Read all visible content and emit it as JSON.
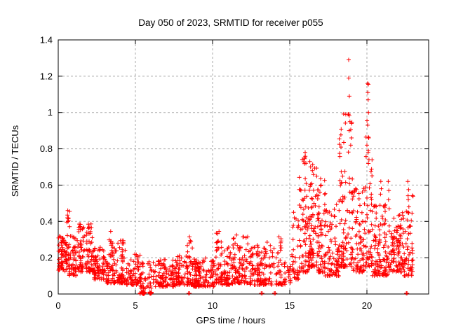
{
  "chart_data": {
    "type": "scatter",
    "title": "Day 050 of 2023, SRMTID for receiver p055",
    "xlabel": "GPS time / hours",
    "ylabel": "SRMTID / TECUs",
    "xlim": [
      0,
      24
    ],
    "ylim": [
      0,
      1.4
    ],
    "xticks": [
      0,
      5,
      10,
      15,
      20
    ],
    "xtick_labels": [
      "0",
      "5",
      "10",
      "15",
      "20"
    ],
    "yticks": [
      0,
      0.2,
      0.4,
      0.6,
      0.8,
      1.0,
      1.2,
      1.4
    ],
    "ytick_labels": [
      "0",
      "0.2",
      "0.4",
      "0.6",
      "0.8",
      "1",
      "1.2",
      "1.4"
    ],
    "grid": true,
    "legend": "none",
    "marker": {
      "shape": "plus",
      "size": 7,
      "color": "#ff0000"
    },
    "colors": {
      "marker": "#ff0000",
      "grid": "#aaaaaa",
      "axis": "#000000",
      "background": "#ffffff"
    },
    "seed": 20230050,
    "clusters": [
      {
        "x": [
          0.0,
          0.35
        ],
        "n": 45,
        "y": [
          0.13,
          0.33
        ],
        "k": 1.3
      },
      {
        "x": [
          0.3,
          0.55
        ],
        "n": 25,
        "y": [
          0.12,
          0.3
        ],
        "k": 1.5
      },
      {
        "x": [
          0.5,
          0.75
        ],
        "n": 22,
        "y": [
          0.15,
          0.47
        ],
        "k": 2.0
      },
      {
        "x": [
          0.7,
          1.3
        ],
        "n": 60,
        "y": [
          0.1,
          0.32
        ],
        "k": 1.5
      },
      {
        "x": [
          1.3,
          2.3
        ],
        "n": 110,
        "y": [
          0.12,
          0.39
        ],
        "k": 1.5
      },
      {
        "x": [
          2.3,
          3.1
        ],
        "n": 80,
        "y": [
          0.08,
          0.26
        ],
        "k": 1.6
      },
      {
        "x": [
          3.1,
          3.8
        ],
        "n": 70,
        "y": [
          0.06,
          0.33
        ],
        "k": 2.0
      },
      {
        "x": [
          3.8,
          4.4
        ],
        "n": 60,
        "y": [
          0.06,
          0.3
        ],
        "k": 2.0
      },
      {
        "x": [
          4.4,
          5.3
        ],
        "n": 70,
        "y": [
          0.05,
          0.22
        ],
        "k": 1.8
      },
      {
        "x": [
          5.3,
          6.3
        ],
        "n": 50,
        "y": [
          0.03,
          0.18
        ],
        "k": 1.8
      },
      {
        "x": [
          5.28,
          5.62
        ],
        "n": 28,
        "y": [
          0.0,
          0.012
        ],
        "k": 1.0
      },
      {
        "x": [
          5.92,
          6.08
        ],
        "n": 10,
        "y": [
          0.0,
          0.012
        ],
        "k": 1.0
      },
      {
        "x": [
          6.3,
          7.6
        ],
        "n": 110,
        "y": [
          0.04,
          0.19
        ],
        "k": 1.6
      },
      {
        "x": [
          7.6,
          8.3
        ],
        "n": 65,
        "y": [
          0.05,
          0.22
        ],
        "k": 1.7
      },
      {
        "x": [
          8.3,
          8.7
        ],
        "n": 40,
        "y": [
          0.05,
          0.31
        ],
        "k": 2.0
      },
      {
        "x": [
          8.7,
          10.2
        ],
        "n": 140,
        "y": [
          0.04,
          0.2
        ],
        "k": 1.6
      },
      {
        "x": [
          10.2,
          10.6
        ],
        "n": 40,
        "y": [
          0.06,
          0.34
        ],
        "k": 2.0
      },
      {
        "x": [
          10.6,
          11.3
        ],
        "n": 65,
        "y": [
          0.05,
          0.26
        ],
        "k": 1.8
      },
      {
        "x": [
          11.3,
          12.3
        ],
        "n": 95,
        "y": [
          0.06,
          0.32
        ],
        "k": 1.9
      },
      {
        "x": [
          12.3,
          13.4
        ],
        "n": 95,
        "y": [
          0.05,
          0.27
        ],
        "k": 1.9
      },
      {
        "x": [
          13.4,
          14.5
        ],
        "n": 70,
        "y": [
          0.05,
          0.31
        ],
        "k": 2.1
      },
      {
        "x": [
          14.5,
          15.1
        ],
        "n": 25,
        "y": [
          0.05,
          0.18
        ],
        "k": 1.6
      },
      {
        "x": [
          15.1,
          15.6
        ],
        "n": 35,
        "y": [
          0.08,
          0.45
        ],
        "k": 2.0
      },
      {
        "x": [
          15.6,
          16.2
        ],
        "n": 70,
        "y": [
          0.12,
          0.78
        ],
        "k": 2.2
      },
      {
        "x": [
          16.2,
          16.8
        ],
        "n": 85,
        "y": [
          0.15,
          0.73
        ],
        "k": 2.0
      },
      {
        "x": [
          16.8,
          17.3
        ],
        "n": 70,
        "y": [
          0.12,
          0.64
        ],
        "k": 2.0
      },
      {
        "x": [
          17.3,
          18.2
        ],
        "n": 90,
        "y": [
          0.1,
          0.52
        ],
        "k": 2.0
      },
      {
        "x": [
          18.2,
          19.1
        ],
        "n": 110,
        "y": [
          0.15,
          1.0
        ],
        "k": 2.3
      },
      {
        "x": [
          19.1,
          19.9
        ],
        "n": 80,
        "y": [
          0.12,
          0.62
        ],
        "k": 1.9
      },
      {
        "x": [
          19.9,
          20.35
        ],
        "n": 55,
        "y": [
          0.15,
          1.0
        ],
        "k": 2.3
      },
      {
        "x": [
          20.35,
          21.4
        ],
        "n": 110,
        "y": [
          0.1,
          0.5
        ],
        "k": 1.9
      },
      {
        "x": [
          21.4,
          22.4
        ],
        "n": 110,
        "y": [
          0.12,
          0.45
        ],
        "k": 1.6
      },
      {
        "x": [
          22.4,
          23.0
        ],
        "n": 60,
        "y": [
          0.1,
          0.55
        ],
        "k": 1.9
      }
    ],
    "outliers": [
      [
        0.62,
        0.46
      ],
      [
        0.6,
        0.435
      ],
      [
        0.65,
        0.42
      ],
      [
        1.95,
        0.385
      ],
      [
        2.0,
        0.37
      ],
      [
        3.4,
        0.345
      ],
      [
        8.5,
        0.315
      ],
      [
        10.42,
        0.345
      ],
      [
        11.55,
        0.325
      ],
      [
        12.0,
        0.315
      ],
      [
        14.3,
        0.315
      ],
      [
        15.25,
        0.45
      ],
      [
        15.3,
        0.42
      ],
      [
        16.0,
        0.78
      ],
      [
        15.97,
        0.745
      ],
      [
        16.05,
        0.72
      ],
      [
        16.3,
        0.73
      ],
      [
        16.35,
        0.7
      ],
      [
        17.0,
        0.635
      ],
      [
        17.03,
        0.6
      ],
      [
        18.82,
        1.29
      ],
      [
        18.82,
        1.19
      ],
      [
        18.86,
        1.09
      ],
      [
        18.78,
        0.99
      ],
      [
        18.9,
        0.95
      ],
      [
        18.85,
        0.9
      ],
      [
        19.0,
        0.86
      ],
      [
        18.95,
        0.82
      ],
      [
        20.05,
        1.16
      ],
      [
        20.09,
        1.155
      ],
      [
        20.06,
        1.11
      ],
      [
        20.08,
        1.07
      ],
      [
        20.1,
        1.0
      ],
      [
        20.05,
        0.93
      ],
      [
        20.12,
        0.86
      ],
      [
        20.0,
        0.82
      ],
      [
        20.08,
        0.78
      ],
      [
        20.13,
        0.74
      ],
      [
        20.9,
        0.62
      ],
      [
        20.93,
        0.58
      ],
      [
        20.88,
        0.55
      ],
      [
        21.38,
        0.62
      ],
      [
        21.42,
        0.57
      ],
      [
        21.4,
        0.52
      ],
      [
        21.44,
        0.47
      ],
      [
        22.65,
        0.62
      ],
      [
        22.7,
        0.575
      ],
      [
        22.68,
        0.52
      ],
      [
        22.72,
        0.48
      ],
      [
        8.45,
        0.004
      ],
      [
        8.5,
        0.004
      ],
      [
        13.15,
        0.004
      ],
      [
        13.22,
        0.004
      ],
      [
        14.0,
        0.004
      ],
      [
        14.06,
        0.004
      ],
      [
        22.55,
        0.004
      ],
      [
        22.6,
        0.004
      ]
    ]
  }
}
